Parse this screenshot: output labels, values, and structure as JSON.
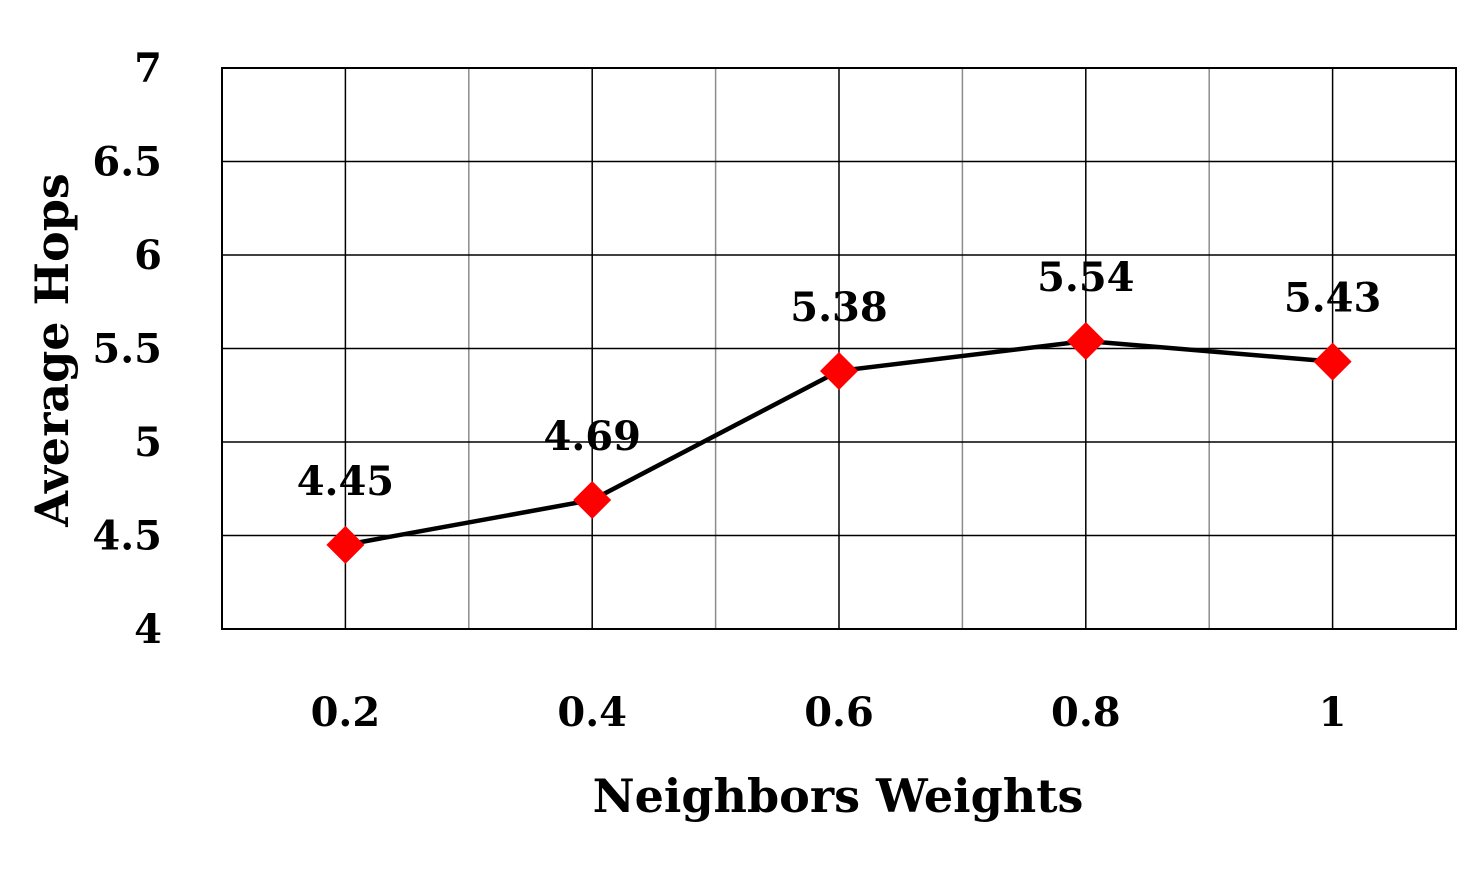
{
  "chart_data": {
    "type": "line",
    "title": "",
    "xlabel": "Neighbors Weights",
    "ylabel": "Average Hops",
    "categories": [
      "0.2",
      "0.4",
      "0.6",
      "0.8",
      "1"
    ],
    "series": [
      {
        "values": [
          4.45,
          4.69,
          5.38,
          5.54,
          5.43
        ],
        "data_labels": [
          "4.45",
          "4.69",
          "5.38",
          "5.54",
          "5.43"
        ],
        "line_color": "#000000",
        "marker": "diamond",
        "marker_color": "#ff0000"
      }
    ],
    "ylim": [
      4,
      7
    ],
    "yticks": [
      "4",
      "4.5",
      "5",
      "5.5",
      "6",
      "6.5",
      "7"
    ],
    "grid": true,
    "legend": "none"
  }
}
